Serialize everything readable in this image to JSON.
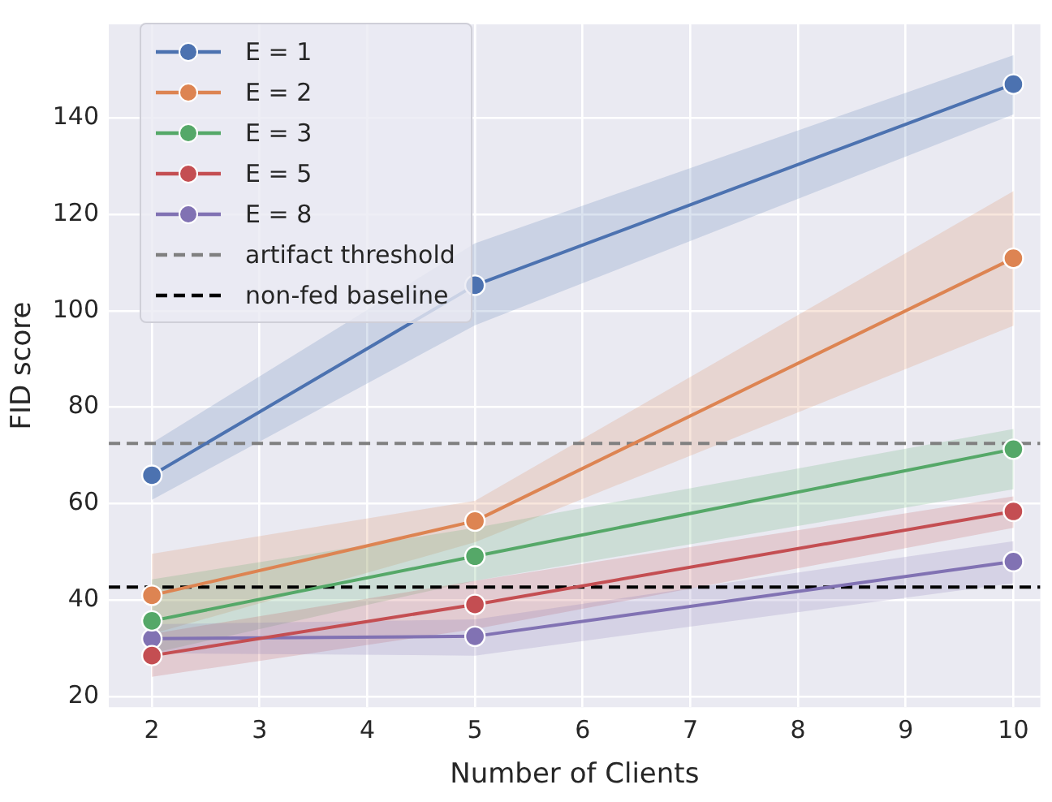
{
  "chart_data": {
    "type": "line",
    "xlabel": "Number of Clients",
    "ylabel": "FID score",
    "x": [
      2,
      5,
      10
    ],
    "series": [
      {
        "name": "E = 1",
        "color": "#4c72b0",
        "values": [
          65.9,
          105.3,
          147
        ],
        "lower": [
          60.8,
          97,
          140.7
        ],
        "upper": [
          72.6,
          114,
          153
        ]
      },
      {
        "name": "E = 2",
        "color": "#dd8452",
        "values": [
          41,
          56.4,
          110.9
        ],
        "lower": [
          33,
          52,
          96.9
        ],
        "upper": [
          49.6,
          60.6,
          124.8
        ]
      },
      {
        "name": "E = 3",
        "color": "#55a868",
        "values": [
          35.7,
          49.1,
          71.3
        ],
        "lower": [
          29,
          44,
          63
        ],
        "upper": [
          44.3,
          55,
          75.5
        ]
      },
      {
        "name": "E = 5",
        "color": "#c44e52",
        "values": [
          28.5,
          39.1,
          58.4
        ],
        "lower": [
          24.1,
          34,
          55
        ],
        "upper": [
          33,
          44,
          61.5
        ]
      },
      {
        "name": "E = 8",
        "color": "#8172b3",
        "values": [
          32,
          32.5,
          48
        ],
        "lower": [
          29,
          28.5,
          43.5
        ],
        "upper": [
          35,
          36,
          52.2
        ]
      }
    ],
    "ref_lines": [
      {
        "axis": "y",
        "value": 72.5,
        "label": "artifact threshold",
        "color": "#808080",
        "line_style": "dashed"
      },
      {
        "axis": "y",
        "value": 42.7,
        "label": "non-fed baseline",
        "color": "#000000",
        "line_style": "dashed"
      }
    ],
    "xlim": [
      1.6,
      10.25
    ],
    "xticks": [
      2,
      3,
      4,
      5,
      6,
      7,
      8,
      9,
      10
    ],
    "ylim": [
      17.8,
      159.4
    ],
    "yticks": [
      20,
      40,
      60,
      80,
      100,
      120,
      140
    ],
    "grid": true,
    "legend": "top left",
    "marker": "circle",
    "line_style": "solid"
  }
}
